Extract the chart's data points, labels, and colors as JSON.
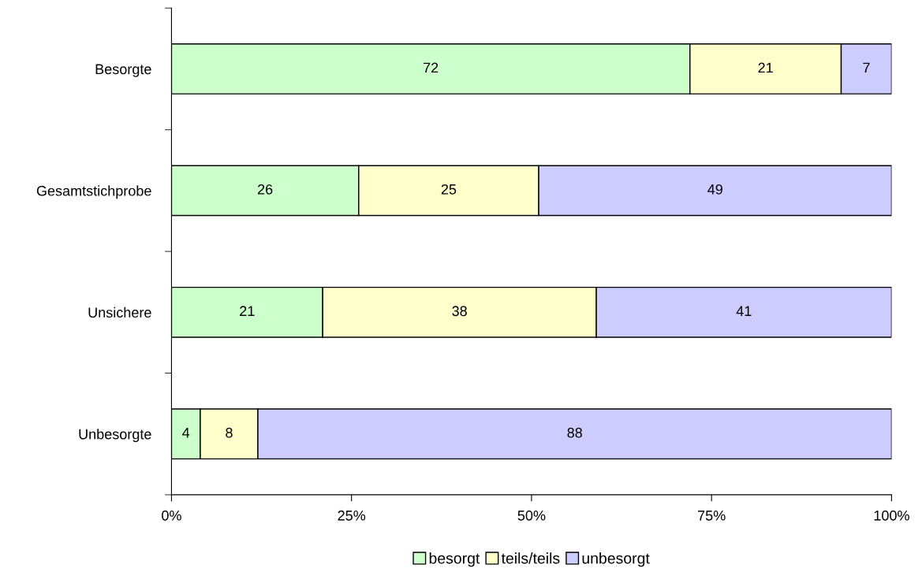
{
  "chart_data": {
    "type": "bar",
    "orientation": "horizontal",
    "stacked": true,
    "categories": [
      "Besorgte",
      "Gesamtstichprobe",
      "Unsichere",
      "Unbesorgte"
    ],
    "series": [
      {
        "name": "besorgt",
        "color": "#ccffcc",
        "values": [
          72,
          26,
          21,
          4
        ]
      },
      {
        "name": "teils/teils",
        "color": "#ffffcc",
        "values": [
          21,
          25,
          38,
          8
        ]
      },
      {
        "name": "unbesorgt",
        "color": "#ccccff",
        "values": [
          7,
          49,
          41,
          88
        ]
      }
    ],
    "xlim": [
      0,
      100
    ],
    "xticks": [
      {
        "value": 0,
        "label": "0%"
      },
      {
        "value": 25,
        "label": "25%"
      },
      {
        "value": 50,
        "label": "50%"
      },
      {
        "value": 75,
        "label": "75%"
      },
      {
        "value": 100,
        "label": "100%"
      }
    ],
    "data_labels": true,
    "grid": false,
    "legend": "bottom"
  }
}
